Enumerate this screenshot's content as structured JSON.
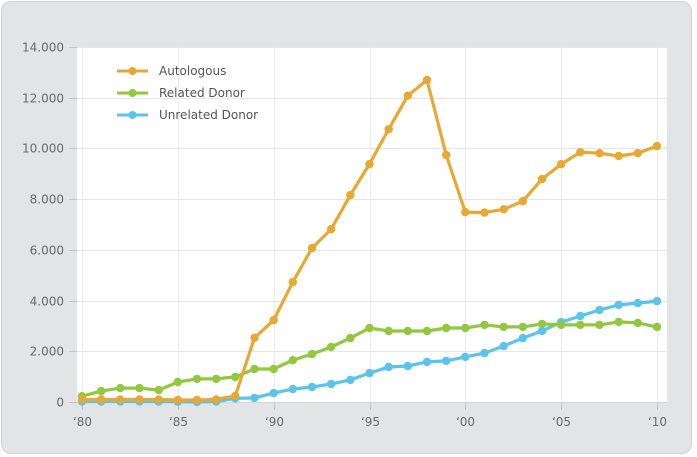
{
  "chart_data": {
    "type": "line",
    "title": "",
    "xlabel": "",
    "ylabel": "",
    "x": [
      1980,
      1981,
      1982,
      1983,
      1984,
      1985,
      1986,
      1987,
      1988,
      1989,
      1990,
      1991,
      1992,
      1993,
      1994,
      1995,
      1996,
      1997,
      1998,
      1999,
      2000,
      2001,
      2002,
      2003,
      2004,
      2005,
      2006,
      2007,
      2008,
      2009,
      2010
    ],
    "xlim": [
      1980,
      2010
    ],
    "ylim": [
      0,
      14000
    ],
    "grid": true,
    "legend_position": "top-left",
    "x_ticks": [
      1980,
      1985,
      1990,
      1995,
      2000,
      2005,
      2010
    ],
    "x_tick_labels": [
      "‘80",
      "‘85",
      "‘90",
      "‘95",
      "‘00",
      "‘05",
      "‘10"
    ],
    "y_ticks": [
      0,
      2000,
      4000,
      6000,
      8000,
      10000,
      12000,
      14000
    ],
    "y_tick_labels": [
      "0",
      "2.000",
      "4.000",
      "6.000",
      "8.000",
      "10.000",
      "12.000",
      "14.000"
    ],
    "series": [
      {
        "name": "Autologous",
        "color": "#e8a832",
        "values": [
          100,
          100,
          100,
          100,
          100,
          80,
          80,
          100,
          240,
          2530,
          3230,
          4730,
          6070,
          6820,
          8160,
          9380,
          10760,
          12080,
          12700,
          9740,
          7490,
          7470,
          7600,
          7920,
          8790,
          9380,
          9850,
          9810,
          9700,
          9810,
          10090
        ]
      },
      {
        "name": "Related Donor",
        "color": "#92c83e",
        "values": [
          230,
          430,
          550,
          550,
          470,
          790,
          910,
          910,
          990,
          1300,
          1300,
          1650,
          1890,
          2170,
          2520,
          2920,
          2800,
          2800,
          2800,
          2920,
          2920,
          3040,
          2960,
          2960,
          3080,
          3040,
          3040,
          3040,
          3160,
          3120,
          2960
        ]
      },
      {
        "name": "Unrelated Donor",
        "color": "#5bc4ec",
        "values": [
          20,
          20,
          20,
          20,
          10,
          10,
          0,
          20,
          140,
          160,
          350,
          510,
          590,
          710,
          870,
          1140,
          1380,
          1420,
          1580,
          1620,
          1780,
          1930,
          2210,
          2520,
          2800,
          3150,
          3390,
          3630,
          3830,
          3900,
          3980
        ]
      }
    ]
  }
}
